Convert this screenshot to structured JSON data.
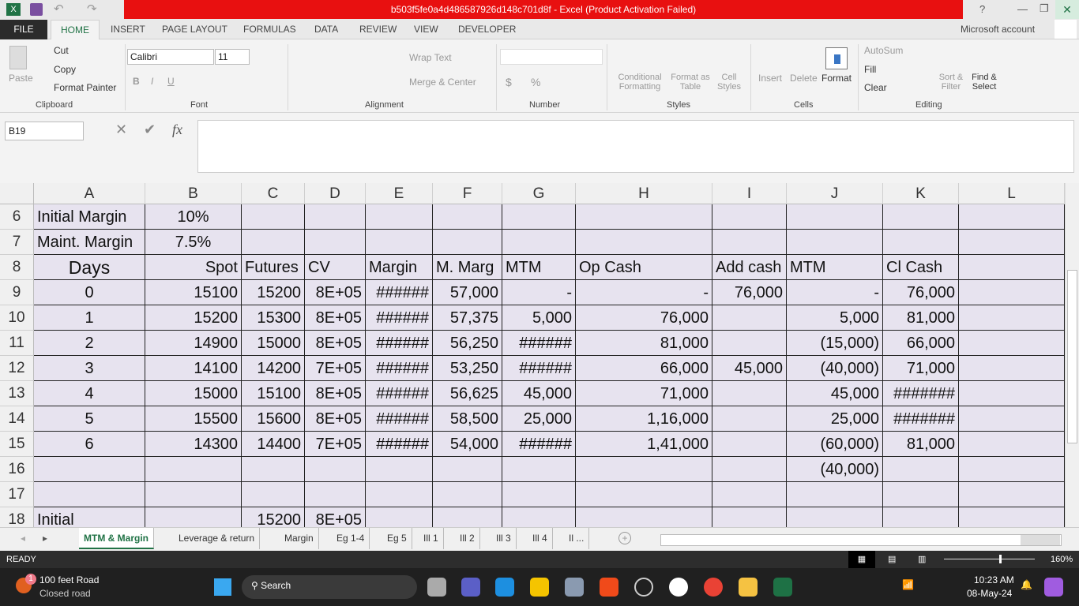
{
  "window": {
    "title": "b503f5fe0a4d486587926d148c701d8f -  Excel (Product Activation Failed)",
    "account": "Microsoft account",
    "help": "?"
  },
  "ribbon_tabs": [
    "FILE",
    "HOME",
    "INSERT",
    "PAGE LAYOUT",
    "FORMULAS",
    "DATA",
    "REVIEW",
    "VIEW",
    "DEVELOPER"
  ],
  "clipboard": {
    "paste": "Paste",
    "cut": "Cut",
    "copy": "Copy",
    "format_painter": "Format Painter",
    "label": "Clipboard"
  },
  "font": {
    "name": "Calibri",
    "size": "11",
    "label": "Font",
    "bold": "B",
    "italic": "I",
    "underline": "U"
  },
  "alignment": {
    "wrap": "Wrap Text",
    "merge": "Merge & Center",
    "label": "Alignment"
  },
  "number": {
    "currency": "$",
    "percent": "%",
    "comma": ",",
    "label": "Number"
  },
  "styles": {
    "conditional": "Conditional Formatting",
    "format_table": "Format as Table",
    "cell_styles": "Cell Styles",
    "label": "Styles"
  },
  "cells": {
    "insert": "Insert",
    "delete": "Delete",
    "format": "Format",
    "label": "Cells"
  },
  "editing": {
    "autosum": "AutoSum",
    "fill": "Fill",
    "clear": "Clear",
    "sort": "Sort & Filter",
    "find": "Find & Select",
    "label": "Editing"
  },
  "formula_bar": {
    "name_box": "B19",
    "fx": "fx",
    "value": ""
  },
  "columns": [
    "A",
    "B",
    "C",
    "D",
    "E",
    "F",
    "G",
    "H",
    "I",
    "J",
    "K",
    "L"
  ],
  "rows": [
    {
      "n": "6",
      "cells": [
        "Initial Margin",
        "10%",
        "",
        "",
        "",
        "",
        "",
        "",
        "",
        "",
        "",
        ""
      ]
    },
    {
      "n": "7",
      "cells": [
        "Maint. Margin",
        "7.5%",
        "",
        "",
        "",
        "",
        "",
        "",
        "",
        "",
        "",
        ""
      ]
    },
    {
      "n": "8",
      "cells": [
        "Days",
        "Spot",
        "Futures",
        "CV",
        "Margin",
        "M. Marg",
        "MTM",
        "Op Cash",
        "Add cash",
        "MTM",
        "Cl Cash",
        ""
      ]
    },
    {
      "n": "9",
      "cells": [
        "0",
        "15100",
        "15200",
        "8E+05",
        "######",
        "57,000",
        "-",
        "-",
        "76,000",
        "-",
        "76,000",
        ""
      ]
    },
    {
      "n": "10",
      "cells": [
        "1",
        "15200",
        "15300",
        "8E+05",
        "######",
        "57,375",
        "5,000",
        "76,000",
        "",
        "5,000",
        "81,000",
        ""
      ]
    },
    {
      "n": "11",
      "cells": [
        "2",
        "14900",
        "15000",
        "8E+05",
        "######",
        "56,250",
        "######",
        "81,000",
        "",
        "(15,000)",
        "66,000",
        ""
      ]
    },
    {
      "n": "12",
      "cells": [
        "3",
        "14100",
        "14200",
        "7E+05",
        "######",
        "53,250",
        "######",
        "66,000",
        "45,000",
        "(40,000)",
        "71,000",
        ""
      ]
    },
    {
      "n": "13",
      "cells": [
        "4",
        "15000",
        "15100",
        "8E+05",
        "######",
        "56,625",
        "45,000",
        "71,000",
        "",
        "45,000",
        "#######",
        ""
      ]
    },
    {
      "n": "14",
      "cells": [
        "5",
        "15500",
        "15600",
        "8E+05",
        "######",
        "58,500",
        "25,000",
        "1,16,000",
        "",
        "25,000",
        "#######",
        ""
      ]
    },
    {
      "n": "15",
      "cells": [
        "6",
        "14300",
        "14400",
        "7E+05",
        "######",
        "54,000",
        "######",
        "1,41,000",
        "",
        "(60,000)",
        "81,000",
        ""
      ]
    },
    {
      "n": "16",
      "cells": [
        "",
        "",
        "",
        "",
        "",
        "",
        "",
        "",
        "",
        "(40,000)",
        "",
        ""
      ]
    },
    {
      "n": "17",
      "cells": [
        "",
        "",
        "",
        "",
        "",
        "",
        "",
        "",
        "",
        "",
        "",
        ""
      ]
    },
    {
      "n": "18",
      "cells": [
        "Initial",
        "",
        "15200",
        "8E+05",
        "",
        "",
        "",
        "",
        "",
        "",
        "",
        ""
      ]
    }
  ],
  "sheets": [
    "MTM & Margin",
    "Leverage & return",
    "Margin",
    "Eg  1-4",
    "Eg 5",
    "Ill 1",
    "Ill 2",
    "Ill 3",
    "Ill 4",
    "Il ..."
  ],
  "active_sheet": "MTM & Margin",
  "status": {
    "mode": "READY",
    "zoom": "160%"
  },
  "taskbar": {
    "weather_title": "100 feet Road",
    "weather_sub": "Closed road",
    "badge": "1",
    "search": "Search",
    "time": "10:23 AM",
    "date": "08-May-24"
  },
  "colors": {
    "title_bar": "#e81010",
    "accent": "#217346",
    "cell_bg": "#e7e3ef"
  }
}
